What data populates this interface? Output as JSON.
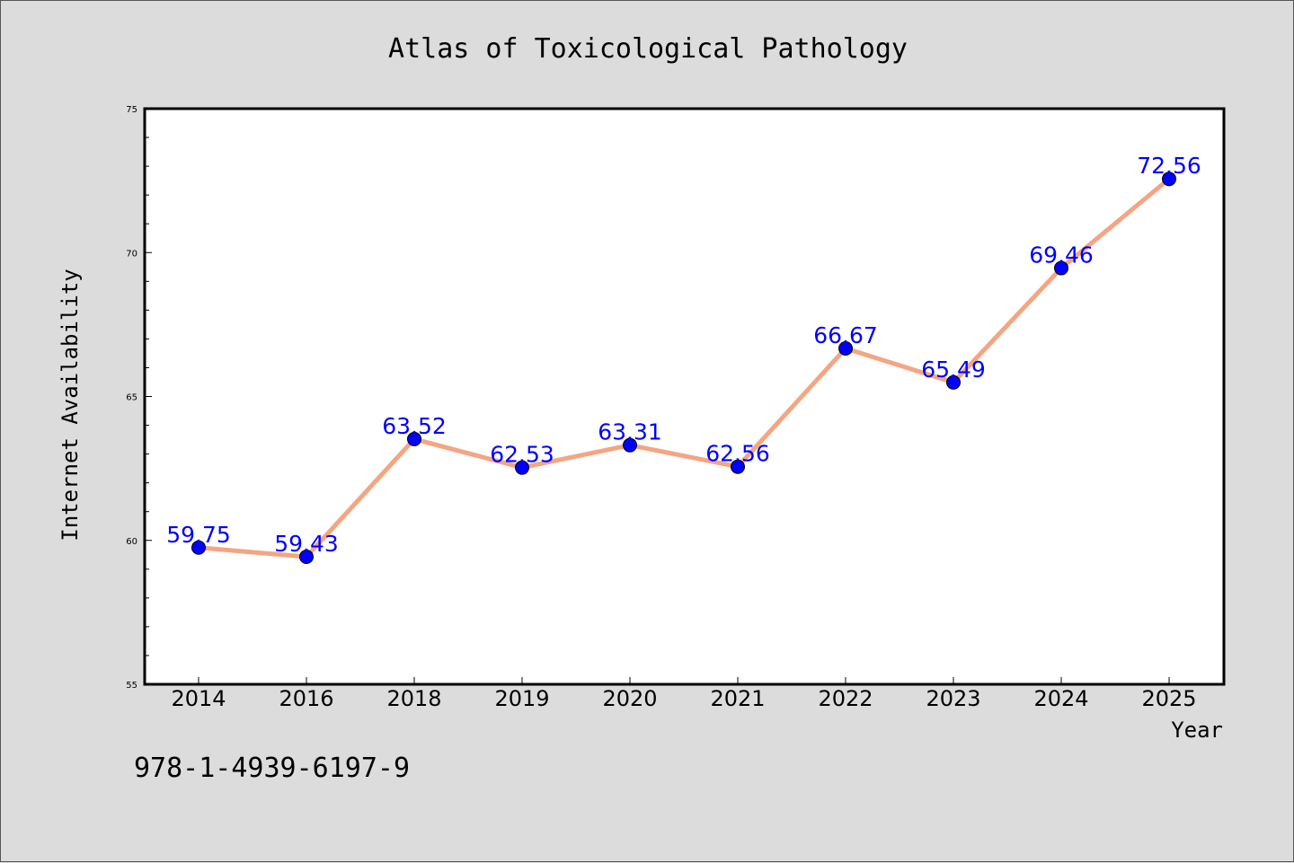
{
  "chart_data": {
    "type": "line",
    "title": "Atlas of Toxicological Pathology",
    "xlabel": "Year",
    "ylabel": "Internet Availability",
    "categories": [
      "2014",
      "2016",
      "2018",
      "2019",
      "2020",
      "2021",
      "2022",
      "2023",
      "2024",
      "2025"
    ],
    "series": [
      {
        "values": [
          59.75,
          59.43,
          63.52,
          62.53,
          63.31,
          62.56,
          66.67,
          65.49,
          69.46,
          72.56
        ],
        "data_labels": [
          "59.75",
          "59.43",
          "63.52",
          "62.53",
          "63.31",
          "62.56",
          "66.67",
          "65.49",
          "69.46",
          "72.56"
        ],
        "line_color": "#f4a582",
        "marker_color": "#0000ff",
        "label_color": "#0000ff"
      }
    ],
    "ylim": [
      55,
      75
    ],
    "yticks": [
      "55",
      "60",
      "65",
      "70",
      "75"
    ],
    "grid": false,
    "legend": "none"
  },
  "footer": {
    "isbn": "978-1-4939-6197-9"
  },
  "colors": {
    "background": "#dcdcdc",
    "plot_area": "#ffffff"
  }
}
